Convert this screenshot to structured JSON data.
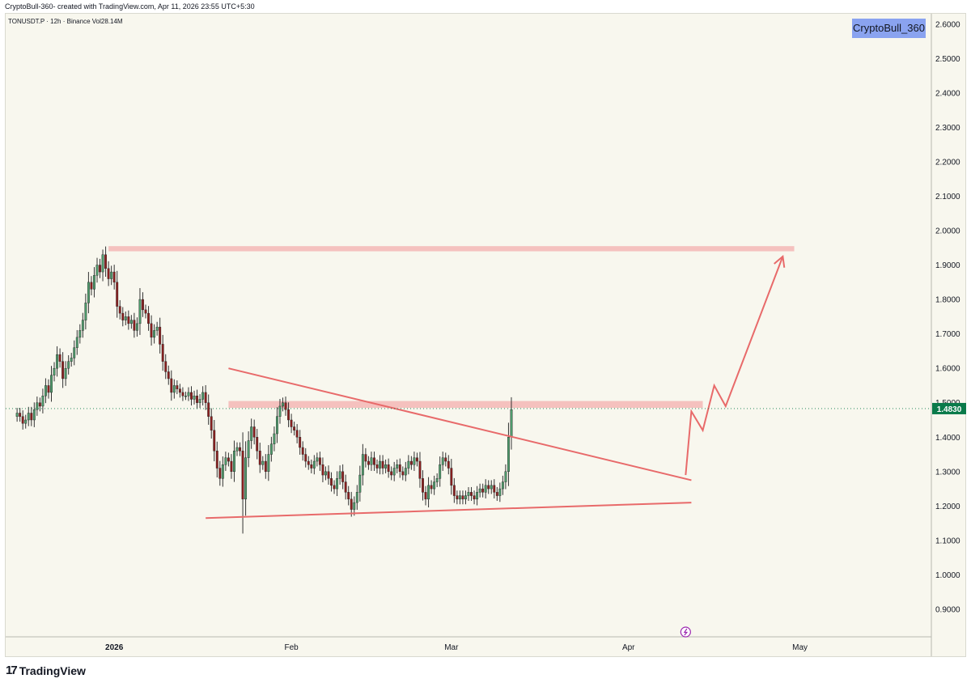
{
  "header": {
    "caption": "CryptoBull-360- created with TradingView.com, Apr 11, 2026 23:55 UTC+5:30",
    "symbol_line": "TONUSDT.P · 12h · Binance  Vol28.14M",
    "watermark": "CryptoBull_360"
  },
  "footer": {
    "logo_mark": "17",
    "logo_text": "TradingView"
  },
  "colors": {
    "background": "#f8f7ee",
    "up": "#4e9a6b",
    "down": "#8b1f1f",
    "wick": "#333333",
    "zone": "#f3a5a5",
    "trendline": "#e86a6a",
    "price_tag": "#0a7a4a"
  },
  "chart_data": {
    "type": "candlestick",
    "symbol": "TONUSDT.P",
    "interval": "12h",
    "exchange": "Binance",
    "volume_label": "Vol28.14M",
    "last_price": "1.4830",
    "ylim": [
      0.82,
      2.63
    ],
    "y_ticks": [
      "2.6000",
      "2.5000",
      "2.4000",
      "2.3000",
      "2.2000",
      "2.1000",
      "2.0000",
      "1.9000",
      "1.8000",
      "1.7000",
      "1.6000",
      "1.5000",
      "1.4000",
      "1.3000",
      "1.2000",
      "1.1000",
      "1.0000",
      "0.9000"
    ],
    "x_ticks": [
      {
        "label": "2026",
        "date": "2026-01-01"
      },
      {
        "label": "Feb",
        "date": "2026-02-01"
      },
      {
        "label": "Mar",
        "date": "2026-03-01"
      },
      {
        "label": "Apr",
        "date": "2026-04-01"
      },
      {
        "label": "May",
        "date": "2026-05-01"
      }
    ],
    "x_range": [
      "2025-12-13",
      "2026-05-24"
    ],
    "closes": [
      1.47,
      1.46,
      1.44,
      1.45,
      1.47,
      1.45,
      1.48,
      1.5,
      1.49,
      1.52,
      1.55,
      1.53,
      1.58,
      1.6,
      1.64,
      1.62,
      1.57,
      1.6,
      1.62,
      1.63,
      1.66,
      1.69,
      1.71,
      1.74,
      1.79,
      1.85,
      1.83,
      1.87,
      1.9,
      1.88,
      1.93,
      1.89,
      1.86,
      1.88,
      1.85,
      1.78,
      1.76,
      1.74,
      1.75,
      1.73,
      1.74,
      1.71,
      1.73,
      1.8,
      1.77,
      1.76,
      1.73,
      1.69,
      1.71,
      1.72,
      1.67,
      1.62,
      1.59,
      1.57,
      1.53,
      1.55,
      1.54,
      1.53,
      1.52,
      1.52,
      1.53,
      1.51,
      1.52,
      1.5,
      1.51,
      1.53,
      1.5,
      1.46,
      1.42,
      1.36,
      1.31,
      1.28,
      1.32,
      1.34,
      1.33,
      1.3,
      1.36,
      1.37,
      1.36,
      1.22,
      1.34,
      1.39,
      1.43,
      1.4,
      1.36,
      1.32,
      1.33,
      1.3,
      1.35,
      1.38,
      1.41,
      1.46,
      1.49,
      1.5,
      1.48,
      1.45,
      1.43,
      1.42,
      1.4,
      1.37,
      1.35,
      1.33,
      1.32,
      1.31,
      1.33,
      1.34,
      1.32,
      1.29,
      1.3,
      1.28,
      1.26,
      1.25,
      1.28,
      1.3,
      1.27,
      1.24,
      1.22,
      1.19,
      1.21,
      1.24,
      1.29,
      1.35,
      1.33,
      1.32,
      1.34,
      1.32,
      1.31,
      1.33,
      1.31,
      1.32,
      1.3,
      1.29,
      1.31,
      1.32,
      1.3,
      1.29,
      1.31,
      1.33,
      1.32,
      1.34,
      1.33,
      1.28,
      1.24,
      1.22,
      1.26,
      1.25,
      1.27,
      1.28,
      1.32,
      1.34,
      1.33,
      1.31,
      1.26,
      1.23,
      1.22,
      1.23,
      1.22,
      1.23,
      1.24,
      1.23,
      1.22,
      1.24,
      1.25,
      1.24,
      1.26,
      1.25,
      1.26,
      1.24,
      1.23,
      1.25,
      1.27,
      1.3,
      1.4,
      1.48
    ],
    "annotations": {
      "resistance_zone_top": {
        "y_low": 1.94,
        "y_high": 1.955,
        "x_start": "2025-12-31",
        "x_end": "2026-04-30"
      },
      "resistance_zone_mid": {
        "y_low": 1.485,
        "y_high": 1.505,
        "x_start": "2026-01-21",
        "x_end": "2026-04-14"
      },
      "descending_trendline": [
        {
          "date": "2026-01-21",
          "value": 1.6
        },
        {
          "date": "2026-04-12",
          "value": 1.275
        }
      ],
      "ascending_support": [
        {
          "date": "2026-01-17",
          "value": 1.165
        },
        {
          "date": "2026-04-12",
          "value": 1.21
        }
      ],
      "projection_path": [
        {
          "date": "2026-04-11",
          "value": 1.29
        },
        {
          "date": "2026-04-12",
          "value": 1.475
        },
        {
          "date": "2026-04-14",
          "value": 1.42
        },
        {
          "date": "2026-04-16",
          "value": 1.55
        },
        {
          "date": "2026-04-18",
          "value": 1.49
        },
        {
          "date": "2026-04-28",
          "value": 1.925
        }
      ]
    }
  }
}
